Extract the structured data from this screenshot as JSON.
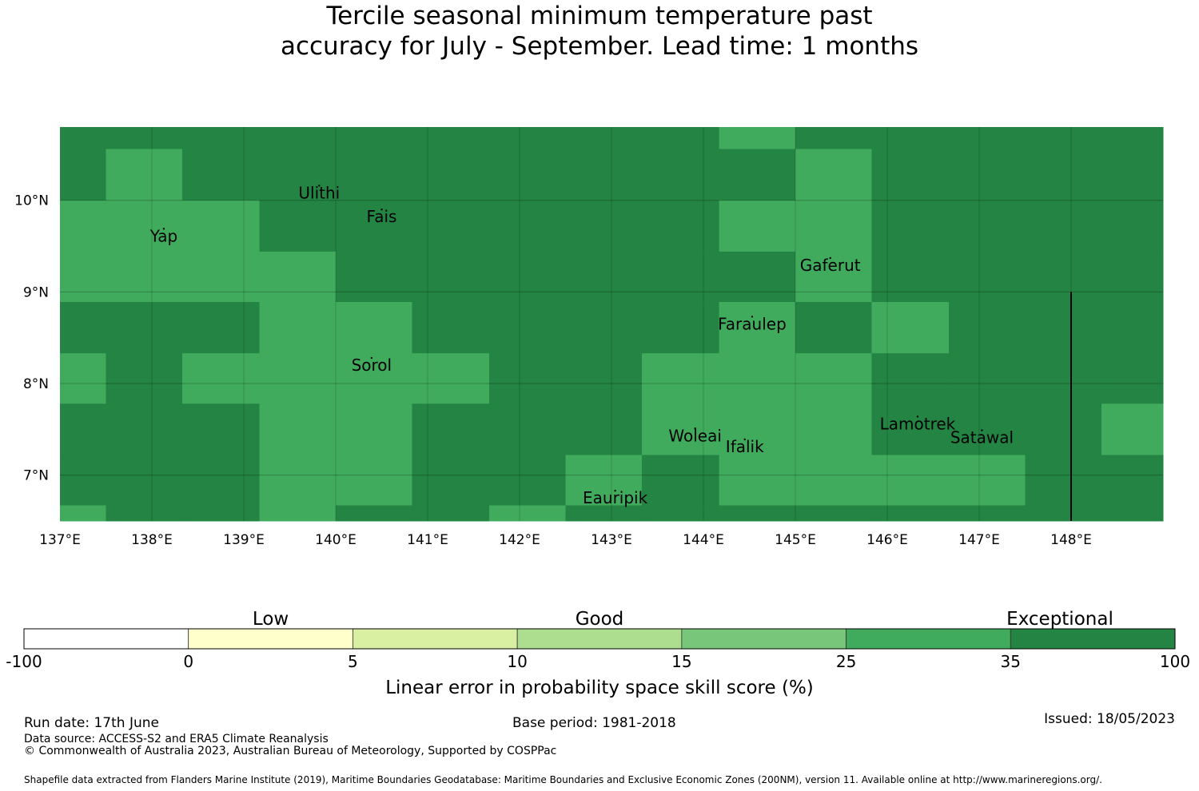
{
  "title_line1": "Tercile seasonal minimum temperature past",
  "title_line2": "accuracy for July - September. Lead time: 1 months",
  "colors": {
    "exceptional_35_100": "#238443",
    "level_25_35": "#41ab5d",
    "level_15_25": "#78c679",
    "level_10_15": "#addd8e",
    "level_5_10": "#d9f0a3",
    "level_0_5": "#ffffcc",
    "level_neg": "#ffffff"
  },
  "map": {
    "lon_range": [
      137,
      149
    ],
    "lat_range": [
      6.5,
      10.8
    ],
    "cell_columns_lon": [
      137.0,
      137.5,
      138.33,
      139.17,
      140.0,
      140.83,
      141.67,
      142.5,
      143.33,
      144.17,
      145.0,
      145.83,
      146.67,
      147.5,
      148.33,
      149.0
    ],
    "cell_rows_lat": [
      10.8,
      10.56,
      10.0,
      9.44,
      8.89,
      8.33,
      7.78,
      7.22,
      6.67,
      6.5
    ],
    "cell_classes_row_major": [
      [
        "E",
        "E",
        "E",
        "E",
        "E",
        "E",
        "E",
        "E",
        "E",
        "G",
        "E",
        "E",
        "E",
        "E",
        "E"
      ],
      [
        "E",
        "G",
        "E",
        "E",
        "E",
        "E",
        "E",
        "E",
        "E",
        "E",
        "G",
        "E",
        "E",
        "E",
        "E"
      ],
      [
        "G",
        "G",
        "G",
        "E",
        "E",
        "E",
        "E",
        "E",
        "E",
        "G",
        "G",
        "E",
        "E",
        "E",
        "E"
      ],
      [
        "G",
        "G",
        "G",
        "G",
        "E",
        "E",
        "E",
        "E",
        "E",
        "E",
        "G",
        "E",
        "E",
        "E",
        "E"
      ],
      [
        "E",
        "E",
        "E",
        "G",
        "G",
        "E",
        "E",
        "E",
        "E",
        "G",
        "E",
        "G",
        "E",
        "E",
        "E"
      ],
      [
        "G",
        "E",
        "G",
        "G",
        "G",
        "G",
        "E",
        "E",
        "G",
        "G",
        "G",
        "E",
        "E",
        "E",
        "E"
      ],
      [
        "E",
        "E",
        "E",
        "G",
        "G",
        "E",
        "E",
        "E",
        "G",
        "G",
        "G",
        "E",
        "E",
        "E",
        "G"
      ],
      [
        "E",
        "E",
        "E",
        "G",
        "G",
        "E",
        "E",
        "G",
        "E",
        "G",
        "G",
        "G",
        "G",
        "E",
        "E"
      ],
      [
        "G",
        "E",
        "E",
        "G",
        "E",
        "E",
        "G",
        "E",
        "E",
        "E",
        "E",
        "E",
        "E",
        "E",
        "E"
      ]
    ],
    "lon_ticks": [
      "137°E",
      "138°E",
      "139°E",
      "140°E",
      "141°E",
      "142°E",
      "143°E",
      "144°E",
      "145°E",
      "146°E",
      "147°E",
      "148°E"
    ],
    "lat_ticks": [
      "10°N",
      "9°N",
      "8°N",
      "7°N"
    ],
    "places": [
      {
        "name": "Ulithi",
        "lon": 139.82,
        "lat": 10.02
      },
      {
        "name": "Fais",
        "lon": 140.5,
        "lat": 9.76
      },
      {
        "name": "Yap",
        "lon": 138.13,
        "lat": 9.55
      },
      {
        "name": "Gaferut",
        "lon": 145.38,
        "lat": 9.23
      },
      {
        "name": "Faraulep",
        "lon": 144.53,
        "lat": 8.59
      },
      {
        "name": "Sorol",
        "lon": 140.39,
        "lat": 8.14
      },
      {
        "name": "Woleai",
        "lon": 143.91,
        "lat": 7.37
      },
      {
        "name": "Ifalik",
        "lon": 144.45,
        "lat": 7.25
      },
      {
        "name": "Lamotrek",
        "lon": 146.33,
        "lat": 7.5
      },
      {
        "name": "Satawal",
        "lon": 147.03,
        "lat": 7.35
      },
      {
        "name": "Eauripik",
        "lon": 143.04,
        "lat": 6.69
      }
    ],
    "boundary_line_lon": 148.0,
    "boundary_line_lat_range": [
      6.5,
      9.0
    ]
  },
  "colorbar": {
    "categories": [
      "Low",
      "Good",
      "Exceptional"
    ],
    "ticks": [
      "-100",
      "0",
      "5",
      "10",
      "15",
      "25",
      "35",
      "100"
    ],
    "title": "Linear error in probability space skill score (%)"
  },
  "footer": {
    "run_date": "Run date: 17th June",
    "base_period": "Base period: 1981-2018",
    "issued": "Issued: 18/05/2023",
    "data_source": "Data source: ACCESS-S2 and ERA5 Climate Reanalysis",
    "copyright": "© Commonwealth of Australia 2023, Australian Bureau of Meteorology, Supported by COSPPac",
    "shapefile": "Shapefile data extracted from Flanders Marine Institute (2019), Maritime Boundaries Geodatabase: Maritime Boundaries and Exclusive Economic Zones (200NM), version 11. Available online at http://www.marineregions.org/."
  }
}
